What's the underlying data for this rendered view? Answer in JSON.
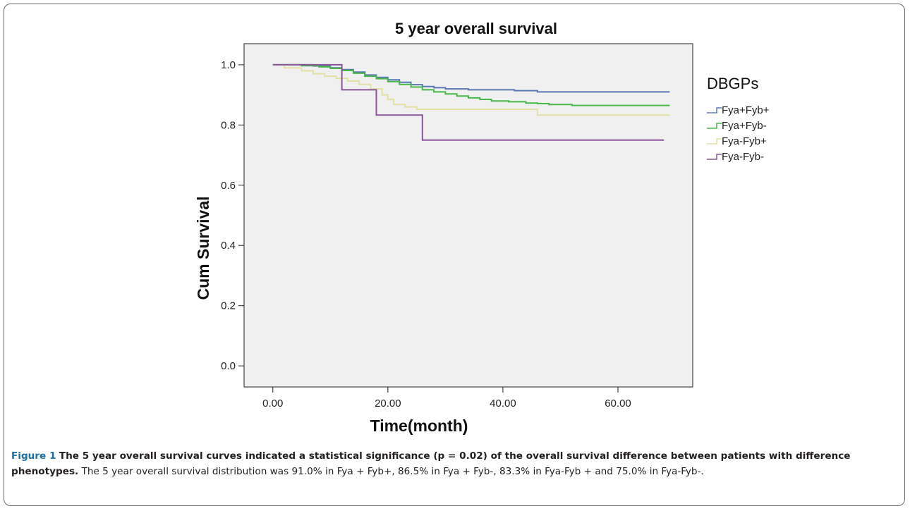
{
  "chart_data": {
    "type": "line",
    "title": "5 year overall survival",
    "xlabel": "Time(month)",
    "ylabel": "Cum Survival",
    "xlim": [
      -5,
      73
    ],
    "ylim": [
      -0.07,
      1.07
    ],
    "xticks": [
      0,
      20,
      40,
      60
    ],
    "xtick_labels": [
      "0.00",
      "20.00",
      "40.00",
      "60.00"
    ],
    "yticks": [
      0,
      0.2,
      0.4,
      0.6,
      0.8,
      1.0
    ],
    "ytick_labels": [
      "0.0",
      "0.2",
      "0.4",
      "0.6",
      "0.8",
      "1.0"
    ],
    "legend_title": "DBGPs",
    "legend_position": "right outside",
    "grid": false,
    "background": "#f0f0f0",
    "series": [
      {
        "name": "Fya+Fyb+",
        "color": "#5b78b5",
        "step": true,
        "points": [
          [
            0,
            1.0
          ],
          [
            7,
            0.996
          ],
          [
            10,
            0.99
          ],
          [
            12,
            0.984
          ],
          [
            14,
            0.976
          ],
          [
            16,
            0.966
          ],
          [
            18,
            0.958
          ],
          [
            20,
            0.95
          ],
          [
            22,
            0.942
          ],
          [
            24,
            0.934
          ],
          [
            26,
            0.928
          ],
          [
            28,
            0.924
          ],
          [
            30,
            0.92
          ],
          [
            34,
            0.917
          ],
          [
            40,
            0.917
          ],
          [
            42,
            0.914
          ],
          [
            46,
            0.91
          ],
          [
            69,
            0.91
          ]
        ]
      },
      {
        "name": "Fya+Fyb-",
        "color": "#48b849",
        "step": true,
        "points": [
          [
            0,
            1.0
          ],
          [
            5,
            0.997
          ],
          [
            8,
            0.993
          ],
          [
            10,
            0.988
          ],
          [
            12,
            0.981
          ],
          [
            14,
            0.972
          ],
          [
            16,
            0.962
          ],
          [
            18,
            0.954
          ],
          [
            20,
            0.944
          ],
          [
            22,
            0.935
          ],
          [
            24,
            0.926
          ],
          [
            26,
            0.917
          ],
          [
            28,
            0.91
          ],
          [
            30,
            0.903
          ],
          [
            32,
            0.896
          ],
          [
            34,
            0.89
          ],
          [
            36,
            0.885
          ],
          [
            38,
            0.88
          ],
          [
            41,
            0.877
          ],
          [
            44,
            0.873
          ],
          [
            46,
            0.871
          ],
          [
            48,
            0.868
          ],
          [
            52,
            0.865
          ],
          [
            69,
            0.865
          ]
        ]
      },
      {
        "name": "Fya-Fyb+",
        "color": "#e3e0a6",
        "step": true,
        "points": [
          [
            0,
            1.0
          ],
          [
            2,
            0.99
          ],
          [
            5,
            0.98
          ],
          [
            7,
            0.97
          ],
          [
            9,
            0.962
          ],
          [
            11,
            0.955
          ],
          [
            13,
            0.946
          ],
          [
            15,
            0.935
          ],
          [
            17,
            0.92
          ],
          [
            19,
            0.9
          ],
          [
            20,
            0.885
          ],
          [
            21,
            0.868
          ],
          [
            23,
            0.86
          ],
          [
            25,
            0.852
          ],
          [
            45,
            0.852
          ],
          [
            46,
            0.833
          ],
          [
            69,
            0.833
          ]
        ]
      },
      {
        "name": "Fya-Fyb-",
        "color": "#8b559a",
        "step": true,
        "points": [
          [
            0,
            1.0
          ],
          [
            12,
            0.917
          ],
          [
            18,
            0.833
          ],
          [
            26,
            0.75
          ],
          [
            68,
            0.75
          ]
        ]
      }
    ]
  },
  "caption": {
    "label": "Figure 1",
    "title": "The 5 year overall survival curves indicated a statistical significance (p = 0.02) of the overall survival difference between patients with difference phenotypes.",
    "text": "The 5 year overall survival distribution was 91.0% in Fya + Fyb+, 86.5% in Fya + Fyb-, 83.3% in Fya-Fyb + and 75.0% in Fya-Fyb-."
  }
}
